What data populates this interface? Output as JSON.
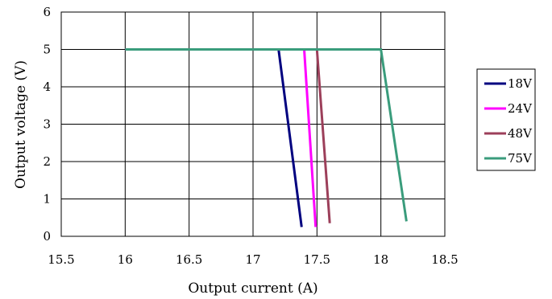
{
  "chart_data": {
    "type": "line",
    "title": "",
    "xlabel": "Output current (A)",
    "ylabel": "Output voltage (V)",
    "xlim": [
      15.5,
      18.5
    ],
    "ylim": [
      0,
      6
    ],
    "xticks": [
      15.5,
      16,
      16.5,
      17,
      17.5,
      18,
      18.5
    ],
    "xtick_labels": [
      "15.5",
      "16",
      "16.5",
      "17",
      "17.5",
      "18",
      "18.5"
    ],
    "yticks": [
      0,
      1,
      2,
      3,
      4,
      5,
      6
    ],
    "ytick_labels": [
      "0",
      "1",
      "2",
      "3",
      "4",
      "5",
      "6"
    ],
    "grid": true,
    "legend_position": "right",
    "series": [
      {
        "name": "18V",
        "color": "#00007f",
        "points": [
          [
            16.0,
            5.0
          ],
          [
            17.2,
            5.0
          ],
          [
            17.38,
            0.25
          ]
        ]
      },
      {
        "name": "24V",
        "color": "#ff00ff",
        "points": [
          [
            16.0,
            5.0
          ],
          [
            17.4,
            5.0
          ],
          [
            17.49,
            0.25
          ]
        ]
      },
      {
        "name": "48V",
        "color": "#9c3f5a",
        "points": [
          [
            16.0,
            5.0
          ],
          [
            17.5,
            5.0
          ],
          [
            17.6,
            0.35
          ]
        ]
      },
      {
        "name": "75V",
        "color": "#3a9c7c",
        "points": [
          [
            16.0,
            5.0
          ],
          [
            18.0,
            5.0
          ],
          [
            18.2,
            0.4
          ]
        ]
      }
    ]
  }
}
